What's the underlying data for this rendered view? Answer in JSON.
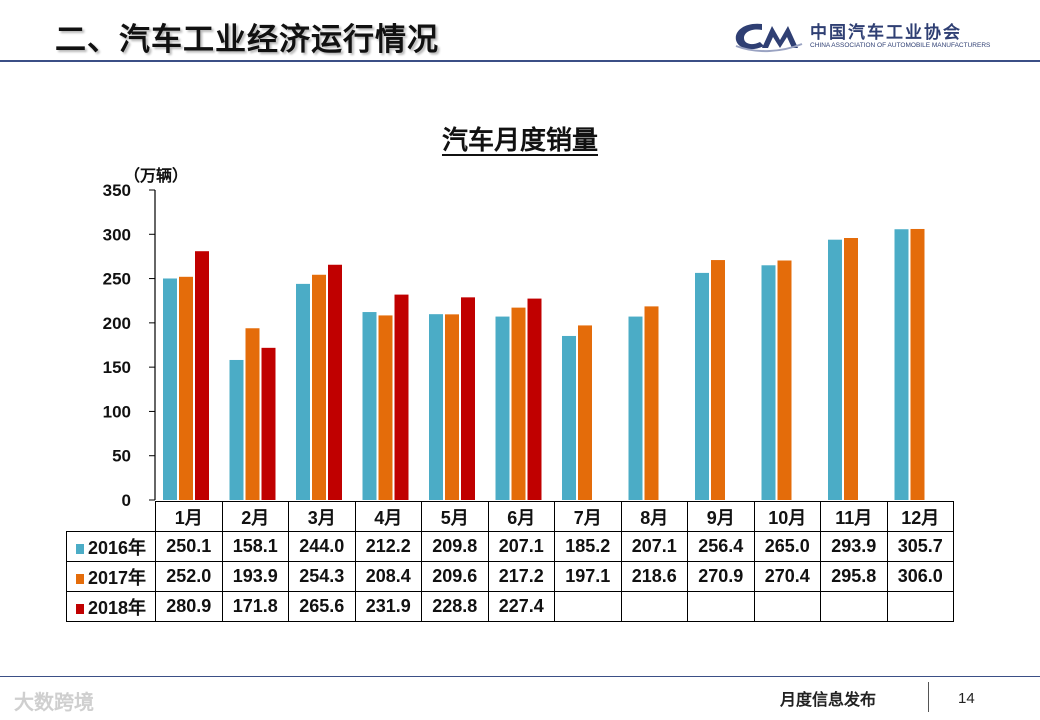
{
  "slide": {
    "title": "二、汽车工业经济运行情况",
    "logo": {
      "name_cn": "中国汽车工业协会",
      "name_en": "CHINA ASSOCIATION OF AUTOMOBILE MANUFACTURERS"
    },
    "footer_text": "月度信息发布",
    "page_number": "14",
    "watermark": "大数跨境"
  },
  "chart_data": {
    "type": "bar",
    "title": "汽车月度销量",
    "ylabel": "（万辆）",
    "ylim": [
      0,
      350
    ],
    "yticks": [
      0,
      50,
      100,
      150,
      200,
      250,
      300,
      350
    ],
    "grid": false,
    "legend": "data-table",
    "categories": [
      "1月",
      "2月",
      "3月",
      "4月",
      "5月",
      "6月",
      "7月",
      "8月",
      "9月",
      "10月",
      "11月",
      "12月"
    ],
    "series": [
      {
        "name": "2016年",
        "color": "#4bacc6",
        "values": [
          250.1,
          158.1,
          244.0,
          212.2,
          209.8,
          207.1,
          185.2,
          207.1,
          256.4,
          265.0,
          293.9,
          305.7
        ]
      },
      {
        "name": "2017年",
        "color": "#e46c0a",
        "values": [
          252.0,
          193.9,
          254.3,
          208.4,
          209.6,
          217.2,
          197.1,
          218.6,
          270.9,
          270.4,
          295.8,
          306.0
        ]
      },
      {
        "name": "2018年",
        "color": "#c00000",
        "values": [
          280.9,
          171.8,
          265.6,
          231.9,
          228.8,
          227.4,
          null,
          null,
          null,
          null,
          null,
          null
        ]
      }
    ]
  }
}
